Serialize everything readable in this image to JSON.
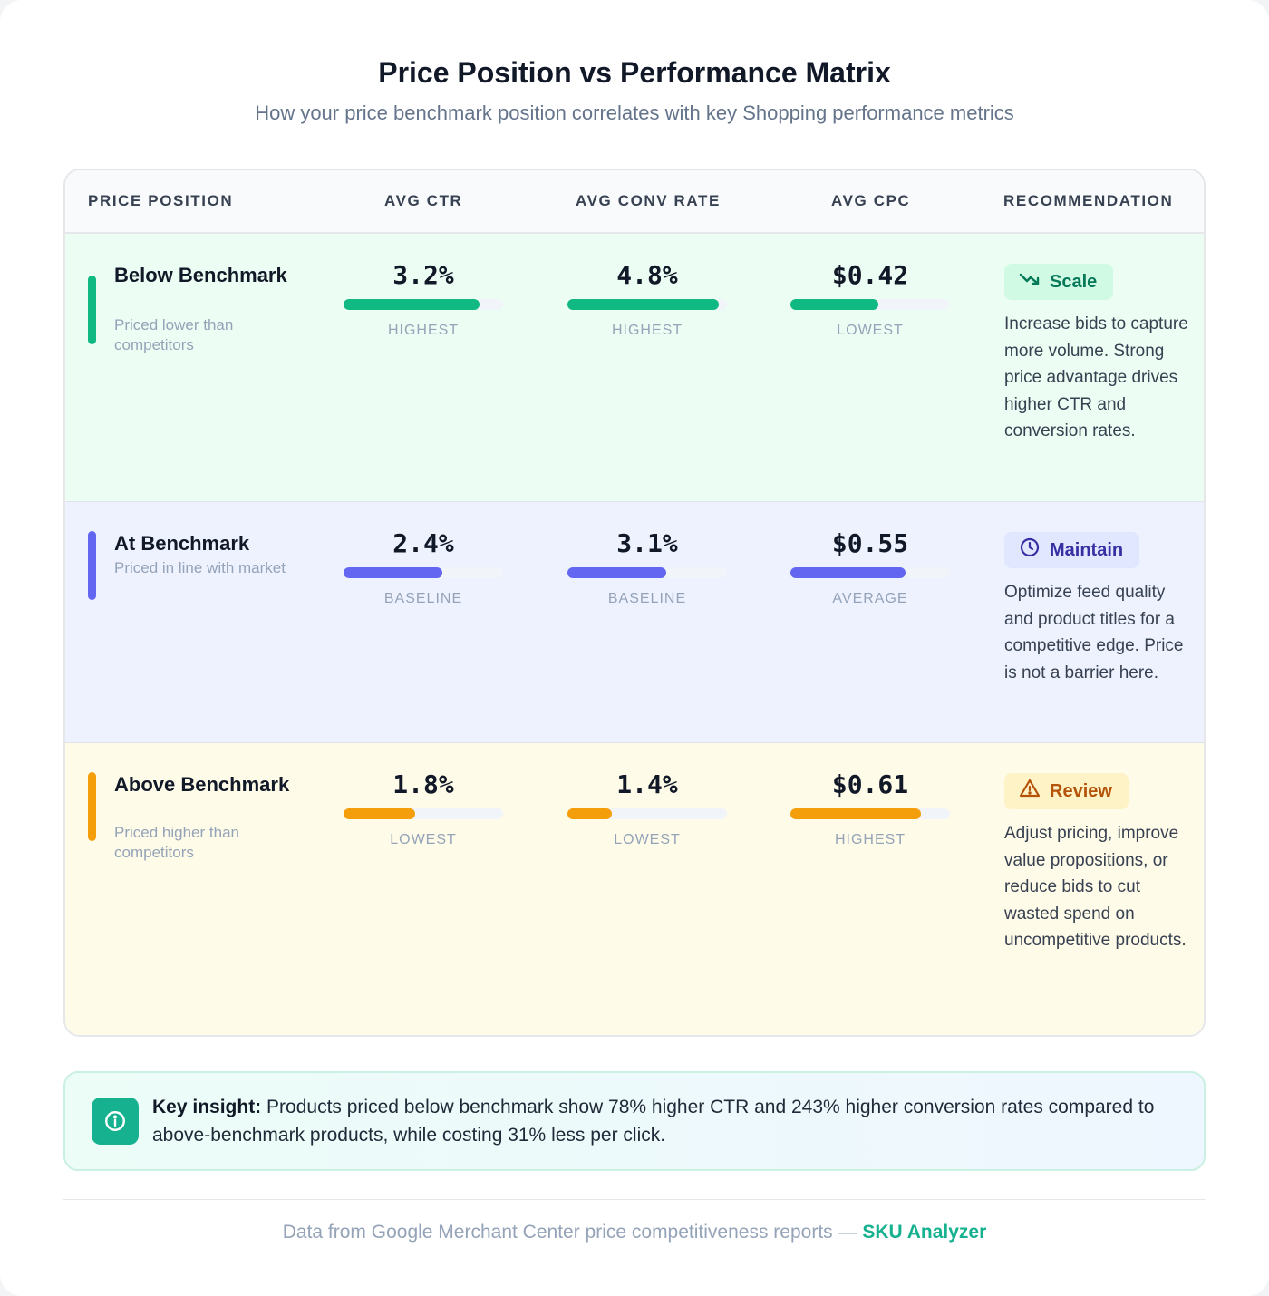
{
  "header": {
    "title": "Price Position vs Performance Matrix",
    "subtitle": "How your price benchmark position correlates with key Shopping performance metrics"
  },
  "table": {
    "columns": [
      "PRICE POSITION",
      "AVG CTR",
      "AVG CONV RATE",
      "AVG CPC",
      "RECOMMENDATION"
    ],
    "rows": [
      {
        "title": "Below Benchmark",
        "subtitle": "Priced lower than competitors",
        "accent": "#10b981",
        "metrics": [
          {
            "value": "3.2%",
            "level": 0.85,
            "tag": "HIGHEST"
          },
          {
            "value": "4.8%",
            "level": 0.95,
            "tag": "HIGHEST"
          },
          {
            "value": "$0.42",
            "level": 0.55,
            "tag": "LOWEST"
          }
        ],
        "badge": {
          "label": "Scale",
          "icon": "trending-down-icon",
          "bg": "#d1fae5",
          "fg": "#047857"
        },
        "recommendation": "Increase bids to capture more volume. Strong price advantage drives higher CTR and conversion rates."
      },
      {
        "title": "At Benchmark",
        "subtitle": "Priced in line with market",
        "accent": "#6366f1",
        "metrics": [
          {
            "value": "2.4%",
            "level": 0.62,
            "tag": "BASELINE"
          },
          {
            "value": "3.1%",
            "level": 0.62,
            "tag": "BASELINE"
          },
          {
            "value": "$0.55",
            "level": 0.72,
            "tag": "AVERAGE"
          }
        ],
        "badge": {
          "label": "Maintain",
          "icon": "clock-icon",
          "bg": "#e0e7ff",
          "fg": "#3730a3"
        },
        "recommendation": "Optimize feed quality and product titles for a competitive edge. Price is not a barrier here."
      },
      {
        "title": "Above Benchmark",
        "subtitle": "Priced higher than competitors",
        "accent": "#f59e0b",
        "metrics": [
          {
            "value": "1.8%",
            "level": 0.45,
            "tag": "LOWEST"
          },
          {
            "value": "1.4%",
            "level": 0.28,
            "tag": "LOWEST"
          },
          {
            "value": "$0.61",
            "level": 0.82,
            "tag": "HIGHEST"
          }
        ],
        "badge": {
          "label": "Review",
          "icon": "warning-icon",
          "bg": "#fef3c7",
          "fg": "#b45309"
        },
        "recommendation": "Adjust pricing, improve value propositions, or reduce bids to cut wasted spend on uncompetitive products."
      }
    ]
  },
  "insight": {
    "label": "Key insight:",
    "text": "Products priced below benchmark show 78% higher CTR and 243% higher conversion rates compared to above-benchmark products, while costing 31% less per click.",
    "icon": "info-icon"
  },
  "footer": {
    "text": "Data from Google Merchant Center price competitiveness reports —",
    "brand": "SKU Analyzer"
  }
}
